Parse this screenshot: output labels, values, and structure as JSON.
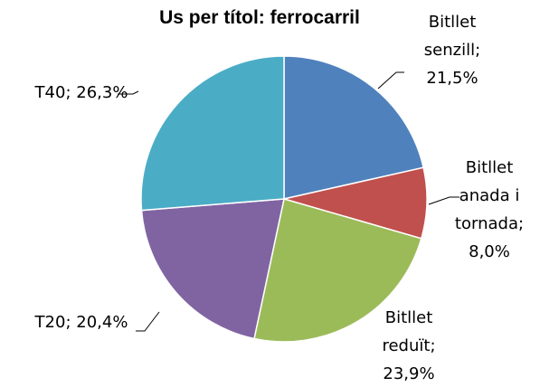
{
  "chart_data": {
    "type": "pie",
    "title": "Us per títol: ferrocarril",
    "categories": [
      "Bitllet senzill",
      "Bitllet anada i tornada",
      "Bitllet reduït",
      "T20",
      "T40"
    ],
    "values": [
      21.5,
      8.0,
      23.9,
      20.4,
      26.3
    ],
    "value_labels": [
      "21,5%",
      "8,0%",
      "23,9%",
      "20,4%",
      "26,3%"
    ],
    "label_separator": "; ",
    "colors": [
      "#4f81bd",
      "#c0504d",
      "#9bbb59",
      "#8064a2",
      "#4bacc6"
    ]
  }
}
